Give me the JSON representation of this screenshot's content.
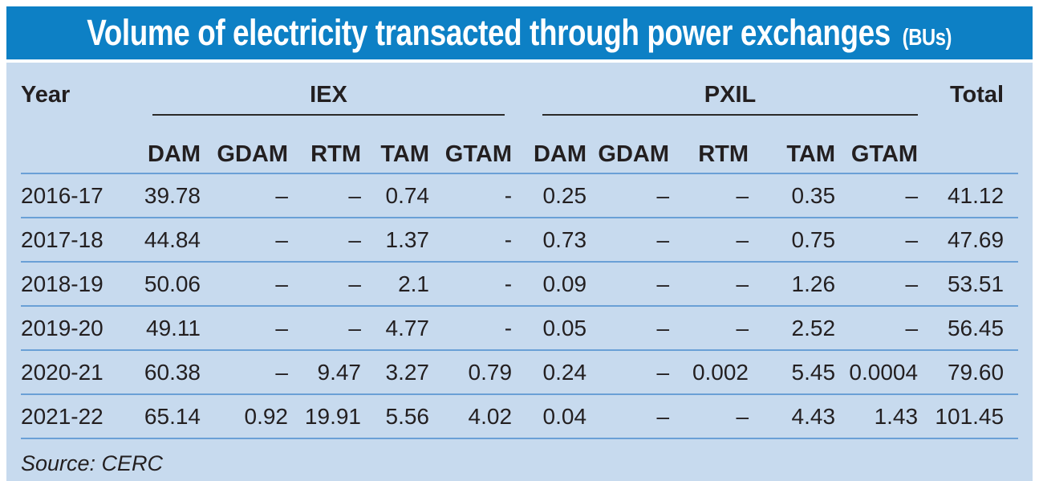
{
  "title": {
    "main": "Volume of electricity transacted through power exchanges",
    "unit": "(BUs)"
  },
  "table": {
    "year_header": "Year",
    "total_header": "Total",
    "groups": [
      {
        "label": "IEX"
      },
      {
        "label": "PXIL"
      }
    ],
    "sub_headers": [
      "DAM",
      "GDAM",
      "RTM",
      "TAM",
      "GTAM"
    ],
    "rows": [
      {
        "year": "2016-17",
        "iex": [
          "39.78",
          "–",
          "–",
          "0.74",
          "-"
        ],
        "pxil": [
          "0.25",
          "–",
          "–",
          "0.35",
          "–"
        ],
        "total": "41.12"
      },
      {
        "year": "2017-18",
        "iex": [
          "44.84",
          "–",
          "–",
          "1.37",
          "-"
        ],
        "pxil": [
          "0.73",
          "–",
          "–",
          "0.75",
          "–"
        ],
        "total": "47.69"
      },
      {
        "year": "2018-19",
        "iex": [
          "50.06",
          "–",
          "–",
          "2.1",
          "-"
        ],
        "pxil": [
          "0.09",
          "–",
          "–",
          "1.26",
          "–"
        ],
        "total": "53.51"
      },
      {
        "year": "2019-20",
        "iex": [
          "49.11",
          "–",
          "–",
          "4.77",
          "-"
        ],
        "pxil": [
          "0.05",
          "–",
          "–",
          "2.52",
          "–"
        ],
        "total": "56.45"
      },
      {
        "year": "2020-21",
        "iex": [
          "60.38",
          "–",
          "9.47",
          "3.27",
          "0.79"
        ],
        "pxil": [
          "0.24",
          "–",
          "0.002",
          "5.45",
          "0.0004"
        ],
        "total": "79.60"
      },
      {
        "year": "2021-22",
        "iex": [
          "65.14",
          "0.92",
          "19.91",
          "5.56",
          "4.02"
        ],
        "pxil": [
          "0.04",
          "–",
          "–",
          "4.43",
          "1.43"
        ],
        "total": "101.45"
      }
    ]
  },
  "source": "Source: CERC",
  "colors": {
    "title_bar": "#0d80c5",
    "title_text": "#ffffff",
    "panel_background": "#c7daee",
    "row_divider": "#6aa0d6",
    "group_rule": "#2b2a28",
    "text": "#231f20"
  },
  "chart_data": {
    "type": "table",
    "title": "Volume of electricity transacted through power exchanges (BUs)",
    "column_groups": [
      "IEX",
      "PXIL"
    ],
    "columns": [
      "Year",
      "IEX DAM",
      "IEX GDAM",
      "IEX RTM",
      "IEX TAM",
      "IEX GTAM",
      "PXIL DAM",
      "PXIL GDAM",
      "PXIL RTM",
      "PXIL TAM",
      "PXIL GTAM",
      "Total"
    ],
    "rows": [
      [
        "2016-17",
        39.78,
        null,
        null,
        0.74,
        null,
        0.25,
        null,
        null,
        0.35,
        null,
        41.12
      ],
      [
        "2017-18",
        44.84,
        null,
        null,
        1.37,
        null,
        0.73,
        null,
        null,
        0.75,
        null,
        47.69
      ],
      [
        "2018-19",
        50.06,
        null,
        null,
        2.1,
        null,
        0.09,
        null,
        null,
        1.26,
        null,
        53.51
      ],
      [
        "2019-20",
        49.11,
        null,
        null,
        4.77,
        null,
        0.05,
        null,
        null,
        2.52,
        null,
        56.45
      ],
      [
        "2020-21",
        60.38,
        null,
        9.47,
        3.27,
        0.79,
        0.24,
        null,
        0.002,
        5.45,
        0.0004,
        79.6
      ],
      [
        "2021-22",
        65.14,
        0.92,
        19.91,
        5.56,
        4.02,
        0.04,
        null,
        null,
        4.43,
        1.43,
        101.45
      ]
    ],
    "source": "Source: CERC"
  }
}
